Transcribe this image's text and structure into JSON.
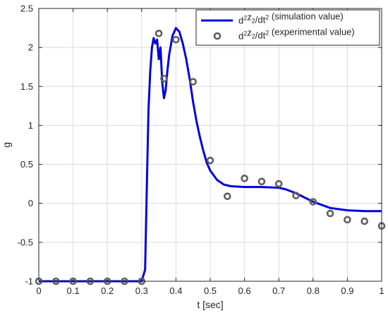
{
  "chart_data": {
    "type": "line",
    "xlabel": "t [sec]",
    "ylabel": "g",
    "xlim": [
      0,
      1
    ],
    "ylim": [
      -1,
      2.5
    ],
    "xticks": [
      0,
      0.1,
      0.2,
      0.3,
      0.4,
      0.5,
      0.6,
      0.7,
      0.8,
      0.9,
      1
    ],
    "yticks": [
      -1,
      -0.5,
      0,
      0.5,
      1,
      1.5,
      2,
      2.5
    ],
    "grid": true,
    "legend_position": "top-right",
    "series": [
      {
        "name": "d²z₂/dt² (simulation value)",
        "legend": {
          "base1": "d",
          "sup1": "2",
          "base2": "z",
          "sub": "2",
          "base3": "/dt",
          "sup2": "2",
          "tail": " (simulation value)"
        },
        "style": "line",
        "color": "#0000e0",
        "x": [
          0,
          0.3,
          0.31,
          0.315,
          0.32,
          0.325,
          0.33,
          0.335,
          0.34,
          0.345,
          0.35,
          0.355,
          0.36,
          0.365,
          0.37,
          0.375,
          0.38,
          0.39,
          0.4,
          0.41,
          0.42,
          0.43,
          0.44,
          0.45,
          0.46,
          0.47,
          0.48,
          0.49,
          0.5,
          0.52,
          0.54,
          0.56,
          0.6,
          0.65,
          0.7,
          0.72,
          0.75,
          0.8,
          0.85,
          0.9,
          0.95,
          1
        ],
        "y": [
          -1,
          -1,
          -0.85,
          0.2,
          1.2,
          1.7,
          2.0,
          2.12,
          2.05,
          2.1,
          1.85,
          2.0,
          1.55,
          1.35,
          1.45,
          1.7,
          1.9,
          2.15,
          2.25,
          2.2,
          2.05,
          1.85,
          1.6,
          1.3,
          1.05,
          0.85,
          0.67,
          0.52,
          0.42,
          0.3,
          0.24,
          0.22,
          0.21,
          0.21,
          0.2,
          0.18,
          0.13,
          0.02,
          -0.06,
          -0.09,
          -0.1,
          -0.1
        ]
      },
      {
        "name": "d²z₂/dt² (experimental value)",
        "legend": {
          "base1": "d",
          "sup1": "2",
          "base2": "z",
          "sub": "2",
          "base3": "/dt",
          "sup2": "2",
          "tail": " (experimental value)"
        },
        "style": "scatter",
        "color": "#606060",
        "x": [
          0,
          0.05,
          0.1,
          0.15,
          0.2,
          0.25,
          0.3,
          0.35,
          0.365,
          0.4,
          0.45,
          0.5,
          0.55,
          0.6,
          0.65,
          0.7,
          0.75,
          0.8,
          0.85,
          0.9,
          0.95,
          1
        ],
        "y": [
          -1,
          -1,
          -1,
          -1,
          -1,
          -1,
          -1,
          2.18,
          1.6,
          2.1,
          1.56,
          0.55,
          0.09,
          0.32,
          0.28,
          0.25,
          0.1,
          0.02,
          -0.13,
          -0.21,
          -0.23,
          -0.29
        ]
      }
    ]
  }
}
